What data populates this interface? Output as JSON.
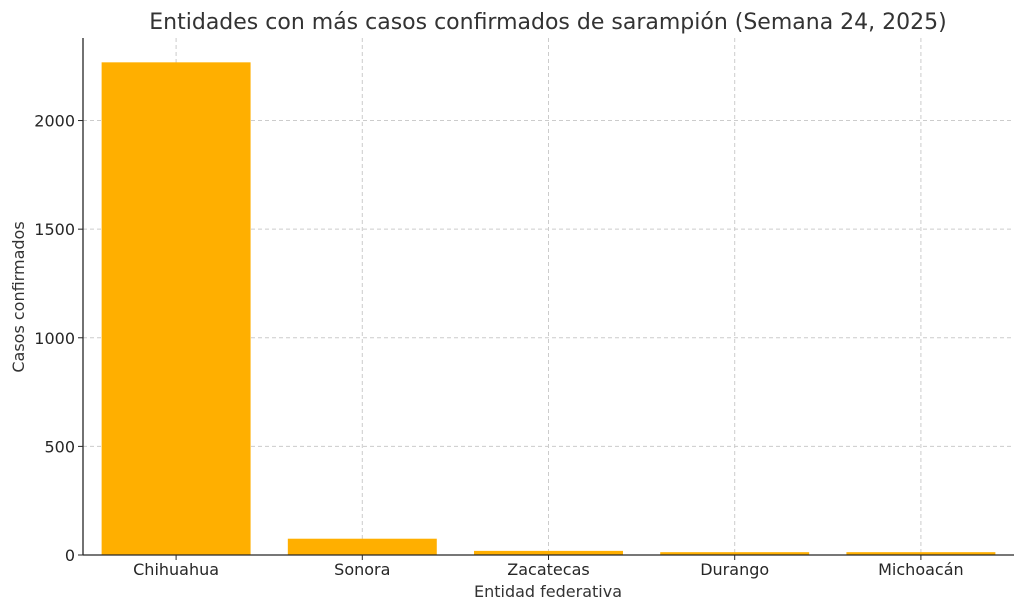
{
  "chart_data": {
    "type": "bar",
    "title": "Entidades con más casos confirmados de sarampión (Semana 24, 2025)",
    "xlabel": "Entidad federativa",
    "ylabel": "Casos confirmados",
    "categories": [
      "Chihuahua",
      "Sonora",
      "Zacatecas",
      "Durango",
      "Michoacán"
    ],
    "values": [
      2268,
      75,
      19,
      13,
      13
    ],
    "ylim": [
      0,
      2380
    ],
    "yticks": [
      0,
      500,
      1000,
      1500,
      2000
    ],
    "grid": true,
    "bar_color": "#FFAF00"
  }
}
